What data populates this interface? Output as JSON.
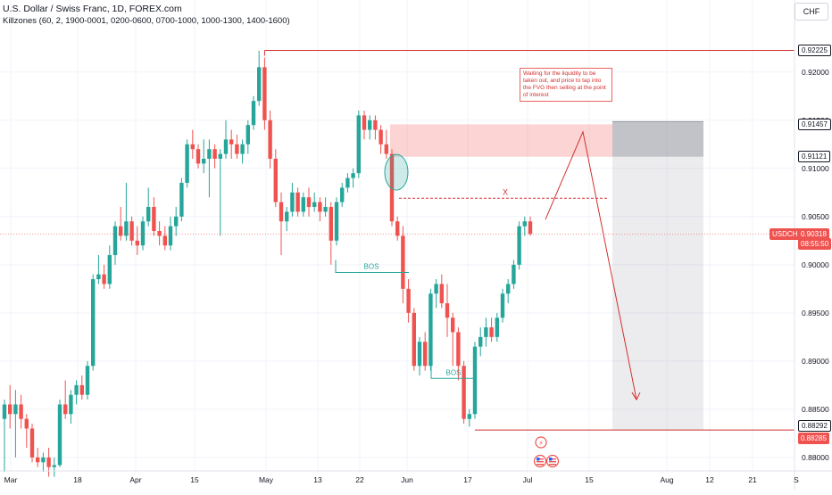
{
  "header": {
    "title": "U.S. Dollar / Swiss Franc, 1D, FOREX.com",
    "indicator": "Killzones (60, 2, 1900-0001, 0200-0600, 0700-1000, 1000-1300, 1400-1600)"
  },
  "currency_label": "CHF",
  "annotation_text": "Waiting for the liquidity to be taken out, and price to tap into the FVG then selling at the point of interest",
  "chart_data": {
    "type": "candlestick",
    "symbol": "USDCHF",
    "timeframe": "1D",
    "x_ticks": [
      "Mar",
      "18",
      "Apr",
      "15",
      "May",
      "13",
      "22",
      "Jun",
      "17",
      "Jul",
      "15",
      "Aug",
      "12",
      "21",
      "S"
    ],
    "y_ticks": [
      "0.92000",
      "0.91500",
      "0.91000",
      "0.90500",
      "0.90000",
      "0.89500",
      "0.89000",
      "0.88500",
      "0.88000"
    ],
    "ylim": [
      0.8786,
      0.9247
    ],
    "colors": {
      "up": "#26a69a",
      "down": "#ef5350",
      "grid": "#f0f3fa",
      "annotation": "#d32f2f",
      "bos": "#26a69a"
    },
    "candles": [
      {
        "o": 0.884,
        "h": 0.886,
        "l": 0.8785,
        "c": 0.8855
      },
      {
        "o": 0.8855,
        "h": 0.8875,
        "l": 0.883,
        "c": 0.8845
      },
      {
        "o": 0.8845,
        "h": 0.887,
        "l": 0.88,
        "c": 0.8855
      },
      {
        "o": 0.8855,
        "h": 0.8865,
        "l": 0.883,
        "c": 0.884
      },
      {
        "o": 0.884,
        "h": 0.8845,
        "l": 0.881,
        "c": 0.883
      },
      {
        "o": 0.883,
        "h": 0.8835,
        "l": 0.8795,
        "c": 0.88
      },
      {
        "o": 0.88,
        "h": 0.881,
        "l": 0.879,
        "c": 0.8795
      },
      {
        "o": 0.8795,
        "h": 0.8805,
        "l": 0.8785,
        "c": 0.88
      },
      {
        "o": 0.88,
        "h": 0.881,
        "l": 0.878,
        "c": 0.879
      },
      {
        "o": 0.879,
        "h": 0.88,
        "l": 0.878,
        "c": 0.8792
      },
      {
        "o": 0.8792,
        "h": 0.886,
        "l": 0.879,
        "c": 0.8855
      },
      {
        "o": 0.8855,
        "h": 0.888,
        "l": 0.884,
        "c": 0.8845
      },
      {
        "o": 0.8845,
        "h": 0.887,
        "l": 0.8835,
        "c": 0.8865
      },
      {
        "o": 0.8865,
        "h": 0.888,
        "l": 0.8855,
        "c": 0.8875
      },
      {
        "o": 0.8875,
        "h": 0.8885,
        "l": 0.886,
        "c": 0.8865
      },
      {
        "o": 0.8865,
        "h": 0.89,
        "l": 0.886,
        "c": 0.8895
      },
      {
        "o": 0.8895,
        "h": 0.899,
        "l": 0.889,
        "c": 0.8985
      },
      {
        "o": 0.8985,
        "h": 0.901,
        "l": 0.898,
        "c": 0.899
      },
      {
        "o": 0.899,
        "h": 0.9,
        "l": 0.8975,
        "c": 0.898
      },
      {
        "o": 0.898,
        "h": 0.902,
        "l": 0.8975,
        "c": 0.901
      },
      {
        "o": 0.901,
        "h": 0.9045,
        "l": 0.9,
        "c": 0.904
      },
      {
        "o": 0.904,
        "h": 0.906,
        "l": 0.9025,
        "c": 0.903
      },
      {
        "o": 0.903,
        "h": 0.9085,
        "l": 0.9025,
        "c": 0.9045
      },
      {
        "o": 0.9045,
        "h": 0.905,
        "l": 0.902,
        "c": 0.9025
      },
      {
        "o": 0.9025,
        "h": 0.904,
        "l": 0.901,
        "c": 0.902
      },
      {
        "o": 0.902,
        "h": 0.905,
        "l": 0.9015,
        "c": 0.9045
      },
      {
        "o": 0.9045,
        "h": 0.908,
        "l": 0.904,
        "c": 0.906
      },
      {
        "o": 0.906,
        "h": 0.907,
        "l": 0.903,
        "c": 0.9035
      },
      {
        "o": 0.9035,
        "h": 0.9045,
        "l": 0.902,
        "c": 0.903
      },
      {
        "o": 0.903,
        "h": 0.904,
        "l": 0.9015,
        "c": 0.902
      },
      {
        "o": 0.902,
        "h": 0.905,
        "l": 0.9015,
        "c": 0.904
      },
      {
        "o": 0.904,
        "h": 0.906,
        "l": 0.903,
        "c": 0.905
      },
      {
        "o": 0.905,
        "h": 0.909,
        "l": 0.9045,
        "c": 0.9085
      },
      {
        "o": 0.9085,
        "h": 0.913,
        "l": 0.908,
        "c": 0.9125
      },
      {
        "o": 0.9125,
        "h": 0.914,
        "l": 0.911,
        "c": 0.912
      },
      {
        "o": 0.912,
        "h": 0.9125,
        "l": 0.91,
        "c": 0.9105
      },
      {
        "o": 0.9105,
        "h": 0.913,
        "l": 0.9095,
        "c": 0.911
      },
      {
        "o": 0.911,
        "h": 0.913,
        "l": 0.907,
        "c": 0.912
      },
      {
        "o": 0.912,
        "h": 0.9125,
        "l": 0.91,
        "c": 0.911
      },
      {
        "o": 0.911,
        "h": 0.912,
        "l": 0.903,
        "c": 0.9115
      },
      {
        "o": 0.9115,
        "h": 0.915,
        "l": 0.911,
        "c": 0.913
      },
      {
        "o": 0.913,
        "h": 0.914,
        "l": 0.911,
        "c": 0.9125
      },
      {
        "o": 0.9125,
        "h": 0.9135,
        "l": 0.911,
        "c": 0.9115
      },
      {
        "o": 0.9115,
        "h": 0.913,
        "l": 0.9105,
        "c": 0.9125
      },
      {
        "o": 0.9125,
        "h": 0.915,
        "l": 0.9115,
        "c": 0.9145
      },
      {
        "o": 0.9145,
        "h": 0.9175,
        "l": 0.914,
        "c": 0.917
      },
      {
        "o": 0.917,
        "h": 0.9222,
        "l": 0.9165,
        "c": 0.9205
      },
      {
        "o": 0.9205,
        "h": 0.9215,
        "l": 0.914,
        "c": 0.915
      },
      {
        "o": 0.915,
        "h": 0.916,
        "l": 0.91,
        "c": 0.911
      },
      {
        "o": 0.911,
        "h": 0.912,
        "l": 0.906,
        "c": 0.9065
      },
      {
        "o": 0.9065,
        "h": 0.9075,
        "l": 0.901,
        "c": 0.9045
      },
      {
        "o": 0.9045,
        "h": 0.906,
        "l": 0.9035,
        "c": 0.9055
      },
      {
        "o": 0.9055,
        "h": 0.9085,
        "l": 0.905,
        "c": 0.9075
      },
      {
        "o": 0.9075,
        "h": 0.908,
        "l": 0.905,
        "c": 0.9055
      },
      {
        "o": 0.9055,
        "h": 0.9075,
        "l": 0.905,
        "c": 0.907
      },
      {
        "o": 0.907,
        "h": 0.908,
        "l": 0.905,
        "c": 0.906
      },
      {
        "o": 0.906,
        "h": 0.9075,
        "l": 0.9055,
        "c": 0.9065
      },
      {
        "o": 0.9065,
        "h": 0.907,
        "l": 0.9045,
        "c": 0.9055
      },
      {
        "o": 0.9055,
        "h": 0.907,
        "l": 0.905,
        "c": 0.906
      },
      {
        "o": 0.906,
        "h": 0.9065,
        "l": 0.9,
        "c": 0.9025
      },
      {
        "o": 0.9025,
        "h": 0.907,
        "l": 0.902,
        "c": 0.9065
      },
      {
        "o": 0.9065,
        "h": 0.9085,
        "l": 0.906,
        "c": 0.908
      },
      {
        "o": 0.908,
        "h": 0.9095,
        "l": 0.9075,
        "c": 0.909
      },
      {
        "o": 0.909,
        "h": 0.91,
        "l": 0.908,
        "c": 0.9095
      },
      {
        "o": 0.9095,
        "h": 0.916,
        "l": 0.909,
        "c": 0.9155
      },
      {
        "o": 0.9155,
        "h": 0.916,
        "l": 0.913,
        "c": 0.914
      },
      {
        "o": 0.914,
        "h": 0.9155,
        "l": 0.913,
        "c": 0.915
      },
      {
        "o": 0.915,
        "h": 0.9155,
        "l": 0.913,
        "c": 0.914
      },
      {
        "o": 0.914,
        "h": 0.9145,
        "l": 0.9115,
        "c": 0.9125
      },
      {
        "o": 0.9125,
        "h": 0.914,
        "l": 0.911,
        "c": 0.9115
      },
      {
        "o": 0.9115,
        "h": 0.912,
        "l": 0.904,
        "c": 0.9045
      },
      {
        "o": 0.9045,
        "h": 0.905,
        "l": 0.9025,
        "c": 0.903
      },
      {
        "o": 0.903,
        "h": 0.904,
        "l": 0.896,
        "c": 0.8975
      },
      {
        "o": 0.8975,
        "h": 0.8985,
        "l": 0.894,
        "c": 0.895
      },
      {
        "o": 0.895,
        "h": 0.8955,
        "l": 0.889,
        "c": 0.8895
      },
      {
        "o": 0.8895,
        "h": 0.8925,
        "l": 0.8885,
        "c": 0.892
      },
      {
        "o": 0.892,
        "h": 0.893,
        "l": 0.889,
        "c": 0.8895
      },
      {
        "o": 0.8895,
        "h": 0.8975,
        "l": 0.889,
        "c": 0.897
      },
      {
        "o": 0.897,
        "h": 0.8985,
        "l": 0.8955,
        "c": 0.898
      },
      {
        "o": 0.898,
        "h": 0.899,
        "l": 0.8955,
        "c": 0.896
      },
      {
        "o": 0.896,
        "h": 0.898,
        "l": 0.8925,
        "c": 0.8945
      },
      {
        "o": 0.8945,
        "h": 0.895,
        "l": 0.8895,
        "c": 0.893
      },
      {
        "o": 0.893,
        "h": 0.8935,
        "l": 0.888,
        "c": 0.8895
      },
      {
        "o": 0.8895,
        "h": 0.89,
        "l": 0.8835,
        "c": 0.884
      },
      {
        "o": 0.884,
        "h": 0.885,
        "l": 0.8832,
        "c": 0.8845
      },
      {
        "o": 0.8845,
        "h": 0.892,
        "l": 0.884,
        "c": 0.8915
      },
      {
        "o": 0.8915,
        "h": 0.8935,
        "l": 0.8905,
        "c": 0.8925
      },
      {
        "o": 0.8925,
        "h": 0.8945,
        "l": 0.8915,
        "c": 0.8935
      },
      {
        "o": 0.8935,
        "h": 0.8945,
        "l": 0.892,
        "c": 0.8925
      },
      {
        "o": 0.8925,
        "h": 0.895,
        "l": 0.892,
        "c": 0.8945
      },
      {
        "o": 0.8945,
        "h": 0.8975,
        "l": 0.894,
        "c": 0.897
      },
      {
        "o": 0.897,
        "h": 0.8985,
        "l": 0.896,
        "c": 0.898
      },
      {
        "o": 0.898,
        "h": 0.9005,
        "l": 0.8975,
        "c": 0.9
      },
      {
        "o": 0.9,
        "h": 0.9045,
        "l": 0.8995,
        "c": 0.904
      },
      {
        "o": 0.904,
        "h": 0.905,
        "l": 0.903,
        "c": 0.9045
      },
      {
        "o": 0.9045,
        "h": 0.905,
        "l": 0.903,
        "c": 0.9032
      }
    ],
    "price_levels": [
      {
        "label": "0.92225",
        "price": 0.92225,
        "style": "outline-dark"
      },
      {
        "label": "0.91457",
        "price": 0.91457,
        "style": "outline-dark"
      },
      {
        "label": "0.91121",
        "price": 0.91121,
        "style": "outline-dark"
      },
      {
        "label": "USDCHF",
        "price": 0.90318,
        "style": "current"
      },
      {
        "label": "0.88292",
        "price": 0.88292,
        "style": "outline-dark"
      },
      {
        "label": "0.88285",
        "price": 0.88285,
        "style": "filled-red"
      }
    ],
    "current_price": {
      "symbol": "USDCHF",
      "price": "0.90318",
      "countdown": "08:55:50"
    },
    "zones": [
      {
        "name": "fvg-zone",
        "price_top": 0.91457,
        "price_bottom": 0.91121
      },
      {
        "name": "short-position",
        "entry": 0.91457,
        "stop": 0.91121,
        "target": 0.88285
      }
    ],
    "liquidity_level": {
      "price": 0.9069,
      "label": "X"
    },
    "bos_labels": [
      "BOS",
      "BOS"
    ],
    "levels_marked": [
      0.92225,
      0.88285
    ]
  }
}
